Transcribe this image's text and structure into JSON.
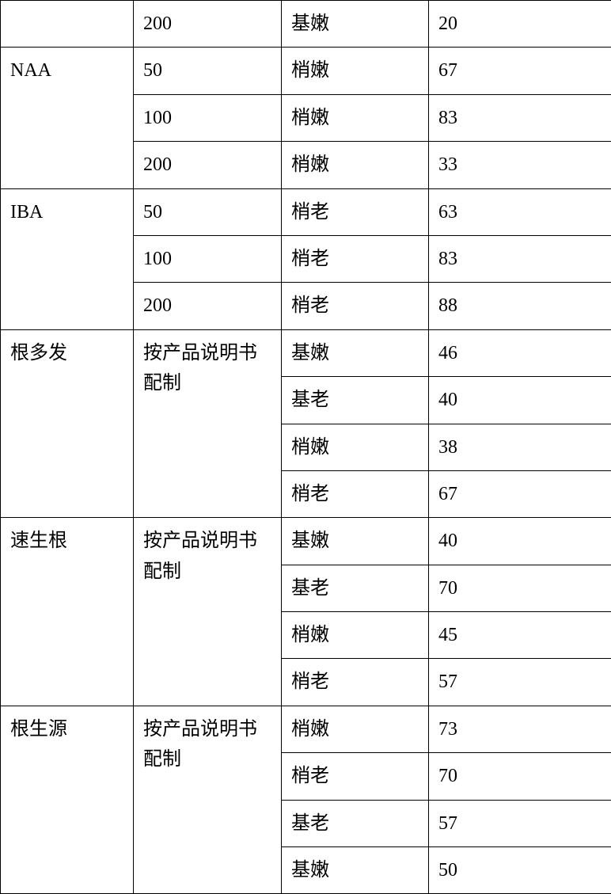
{
  "table": {
    "rows": [
      {
        "c1": "",
        "c2": "200",
        "c3": "基嫩",
        "c4": "20",
        "c1_rowspan": 1,
        "c2_rowspan": 1
      },
      {
        "c1": "NAA",
        "c2": "50",
        "c3": "梢嫩",
        "c4": "67",
        "c1_rowspan": 3,
        "c2_rowspan": 1
      },
      {
        "c1": null,
        "c2": "100",
        "c3": "梢嫩",
        "c4": "83",
        "c1_rowspan": 0,
        "c2_rowspan": 1
      },
      {
        "c1": null,
        "c2": "200",
        "c3": "梢嫩",
        "c4": "33",
        "c1_rowspan": 0,
        "c2_rowspan": 1
      },
      {
        "c1": "IBA",
        "c2": "50",
        "c3": "梢老",
        "c4": "63",
        "c1_rowspan": 3,
        "c2_rowspan": 1
      },
      {
        "c1": null,
        "c2": "100",
        "c3": "梢老",
        "c4": "83",
        "c1_rowspan": 0,
        "c2_rowspan": 1
      },
      {
        "c1": null,
        "c2": "200",
        "c3": "梢老",
        "c4": "88",
        "c1_rowspan": 0,
        "c2_rowspan": 1
      },
      {
        "c1": "根多发",
        "c2": "按产品说明书配制",
        "c3": "基嫩",
        "c4": "46",
        "c1_rowspan": 4,
        "c2_rowspan": 4
      },
      {
        "c1": null,
        "c2": null,
        "c3": "基老",
        "c4": "40",
        "c1_rowspan": 0,
        "c2_rowspan": 0
      },
      {
        "c1": null,
        "c2": null,
        "c3": "梢嫩",
        "c4": "38",
        "c1_rowspan": 0,
        "c2_rowspan": 0
      },
      {
        "c1": null,
        "c2": null,
        "c3": "梢老",
        "c4": "67",
        "c1_rowspan": 0,
        "c2_rowspan": 0
      },
      {
        "c1": "速生根",
        "c2": "按产品说明书配制",
        "c3": "基嫩",
        "c4": "40",
        "c1_rowspan": 4,
        "c2_rowspan": 4
      },
      {
        "c1": null,
        "c2": null,
        "c3": "基老",
        "c4": "70",
        "c1_rowspan": 0,
        "c2_rowspan": 0
      },
      {
        "c1": null,
        "c2": null,
        "c3": "梢嫩",
        "c4": "45",
        "c1_rowspan": 0,
        "c2_rowspan": 0
      },
      {
        "c1": null,
        "c2": null,
        "c3": "梢老",
        "c4": "57",
        "c1_rowspan": 0,
        "c2_rowspan": 0
      },
      {
        "c1": "根生源",
        "c2": "按产品说明书配制",
        "c3": "梢嫩",
        "c4": "73",
        "c1_rowspan": 4,
        "c2_rowspan": 4
      },
      {
        "c1": null,
        "c2": null,
        "c3": "梢老",
        "c4": "70",
        "c1_rowspan": 0,
        "c2_rowspan": 0
      },
      {
        "c1": null,
        "c2": null,
        "c3": "基老",
        "c4": "57",
        "c1_rowspan": 0,
        "c2_rowspan": 0
      },
      {
        "c1": null,
        "c2": null,
        "c3": "基嫩",
        "c4": "50",
        "c1_rowspan": 0,
        "c2_rowspan": 0
      }
    ]
  }
}
